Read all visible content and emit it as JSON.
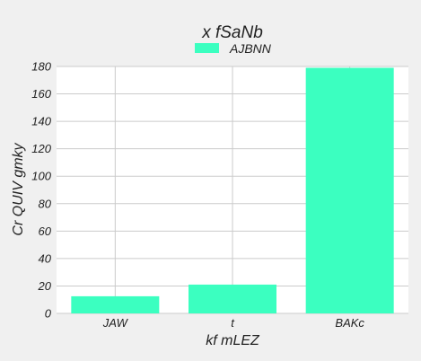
{
  "chart_data": {
    "type": "bar",
    "title": "x fSaNb",
    "xlabel": "kf mLEZ",
    "ylabel": "Cr QUIV gmky",
    "categories": [
      "JAW",
      "t",
      "BAKc"
    ],
    "series": [
      {
        "name": "AJBNN",
        "values": [
          12.5,
          21,
          179
        ],
        "color": "#3bffc0"
      }
    ],
    "ylim": [
      0,
      180
    ],
    "yticks": [
      0,
      20,
      40,
      60,
      80,
      100,
      120,
      140,
      160,
      180
    ],
    "grid": true,
    "legend_position": "top-center",
    "background": "#f0f0f0",
    "plot_background": "#ffffff",
    "grid_color": "#cbcbcb"
  }
}
